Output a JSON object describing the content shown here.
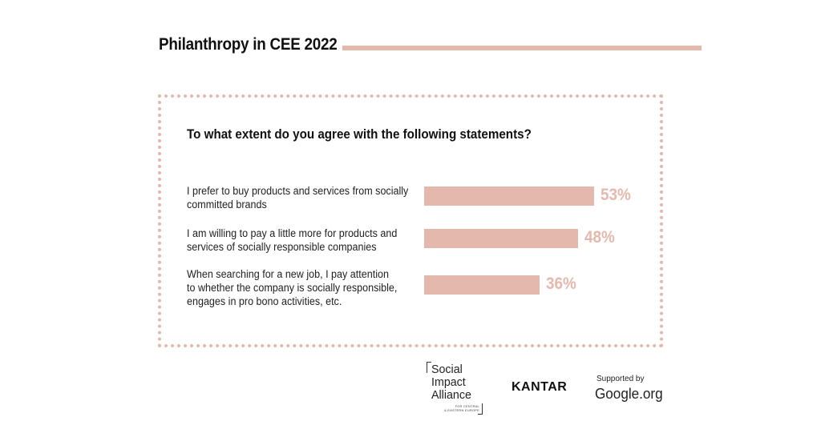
{
  "header": {
    "title": "Philanthropy in CEE 2022"
  },
  "chart_data": {
    "type": "bar",
    "orientation": "horizontal",
    "title": "To what extent do you agree with the following statements?",
    "categories": [
      [
        "I prefer to buy products and services from socially",
        "committed brands"
      ],
      [
        "I am willing to pay a little more for products and",
        "services of socially responsible companies"
      ],
      [
        "When searching for a new job, I pay attention",
        "to whether the company is socially responsible,",
        "engages in pro bono activities, etc."
      ]
    ],
    "values": [
      53,
      48,
      36
    ],
    "value_labels": [
      "53%",
      "48%",
      "36%"
    ],
    "unit": "%",
    "xlim": [
      0,
      100
    ],
    "bar_color": "#e4b8ad",
    "label_color": "#e4b8ad",
    "grid": false,
    "legend": "none"
  },
  "footer": {
    "sia_logo": {
      "lines": [
        "Social",
        "Impact",
        "Alliance"
      ],
      "small_lines": [
        "FOR CENTRAL",
        "& EASTERN EUROPE"
      ]
    },
    "kantar_logo": "KANTAR",
    "supported_by": "Supported by",
    "google_logo": "Google.org"
  },
  "colors": {
    "accent": "#e4b8ad",
    "text": "#111111",
    "background": "#ffffff"
  }
}
